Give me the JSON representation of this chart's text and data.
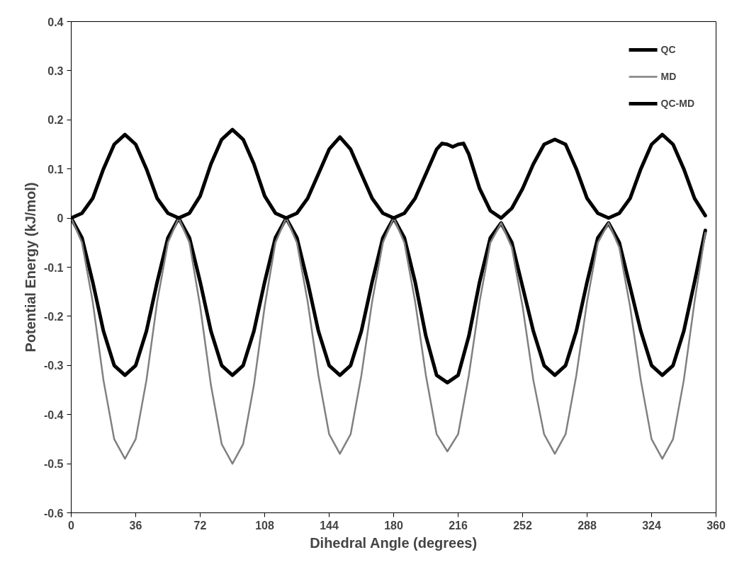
{
  "chart_data": {
    "type": "line",
    "xlabel": "Dihedral Angle (degrees)",
    "ylabel": "Potential Energy (kJ/mol)",
    "x": [
      0,
      6,
      12,
      18,
      24,
      30,
      36,
      42,
      48,
      54,
      60,
      66,
      72,
      78,
      84,
      90,
      96,
      102,
      108,
      114,
      120,
      126,
      132,
      138,
      144,
      150,
      156,
      162,
      168,
      174,
      180,
      186,
      192,
      198,
      204,
      210,
      216,
      222,
      228,
      234,
      240,
      246,
      252,
      258,
      264,
      270,
      276,
      282,
      288,
      294,
      300,
      306,
      312,
      318,
      324,
      330,
      336,
      342,
      348,
      354
    ],
    "series": [
      {
        "name": "QC",
        "color": "#000000",
        "values": [
          0,
          -0.04,
          -0.13,
          -0.23,
          -0.3,
          -0.32,
          -0.3,
          -0.23,
          -0.13,
          -0.04,
          0,
          -0.04,
          -0.13,
          -0.23,
          -0.3,
          -0.32,
          -0.3,
          -0.23,
          -0.13,
          -0.04,
          0,
          -0.04,
          -0.13,
          -0.23,
          -0.3,
          -0.32,
          -0.3,
          -0.23,
          -0.13,
          -0.04,
          0,
          -0.04,
          -0.13,
          -0.24,
          -0.32,
          -0.335,
          -0.32,
          -0.24,
          -0.13,
          -0.04,
          -0.01,
          -0.05,
          -0.14,
          -0.23,
          -0.3,
          -0.32,
          -0.3,
          -0.23,
          -0.13,
          -0.04,
          -0.01,
          -0.05,
          -0.14,
          -0.23,
          -0.3,
          -0.32,
          -0.3,
          -0.23,
          -0.13,
          -0.025
        ]
      },
      {
        "name": "MD",
        "color": "#808080",
        "values": [
          0,
          -0.05,
          -0.17,
          -0.33,
          -0.45,
          -0.49,
          -0.45,
          -0.33,
          -0.17,
          -0.05,
          0,
          -0.05,
          -0.18,
          -0.34,
          -0.46,
          -0.5,
          -0.46,
          -0.34,
          -0.18,
          -0.05,
          0,
          -0.05,
          -0.17,
          -0.32,
          -0.44,
          -0.48,
          -0.44,
          -0.32,
          -0.17,
          -0.05,
          0,
          -0.05,
          -0.17,
          -0.32,
          -0.44,
          -0.475,
          -0.44,
          -0.32,
          -0.17,
          -0.05,
          -0.01,
          -0.06,
          -0.18,
          -0.33,
          -0.44,
          -0.48,
          -0.44,
          -0.32,
          -0.17,
          -0.05,
          -0.01,
          -0.06,
          -0.18,
          -0.33,
          -0.45,
          -0.49,
          -0.45,
          -0.33,
          -0.17,
          -0.03
        ]
      },
      {
        "name": "QC-MD",
        "color": "#000000",
        "x": [
          0,
          6,
          12,
          18,
          24,
          30,
          36,
          42,
          48,
          54,
          60,
          66,
          72,
          78,
          84,
          90,
          96,
          102,
          108,
          114,
          120,
          126,
          132,
          138,
          144,
          150,
          156,
          162,
          168,
          174,
          180,
          186,
          192,
          198,
          204,
          207,
          210,
          213,
          216,
          219,
          222,
          228,
          234,
          240,
          246,
          252,
          258,
          264,
          270,
          276,
          282,
          288,
          294,
          300,
          306,
          312,
          318,
          324,
          330,
          336,
          342,
          348,
          354
        ],
        "values": [
          0,
          0.01,
          0.04,
          0.1,
          0.15,
          0.17,
          0.15,
          0.1,
          0.04,
          0.01,
          0,
          0.01,
          0.045,
          0.11,
          0.16,
          0.18,
          0.16,
          0.11,
          0.045,
          0.01,
          0,
          0.01,
          0.04,
          0.09,
          0.14,
          0.165,
          0.14,
          0.09,
          0.04,
          0.01,
          0,
          0.01,
          0.04,
          0.09,
          0.14,
          0.152,
          0.15,
          0.145,
          0.15,
          0.152,
          0.13,
          0.06,
          0.015,
          0,
          0.02,
          0.06,
          0.11,
          0.15,
          0.16,
          0.15,
          0.1,
          0.04,
          0.01,
          0,
          0.01,
          0.04,
          0.1,
          0.15,
          0.17,
          0.15,
          0.1,
          0.04,
          0.005
        ]
      }
    ],
    "xlim": [
      0,
      360
    ],
    "xticks": [
      0,
      36,
      72,
      108,
      144,
      180,
      216,
      252,
      288,
      324,
      360
    ],
    "ylim": [
      -0.6,
      0.4
    ],
    "yticks": [
      -0.6,
      -0.5,
      -0.4,
      -0.3,
      -0.2,
      -0.1,
      0,
      0.1,
      0.2,
      0.3,
      0.4
    ],
    "legend": "top right",
    "line_style": "solid"
  }
}
